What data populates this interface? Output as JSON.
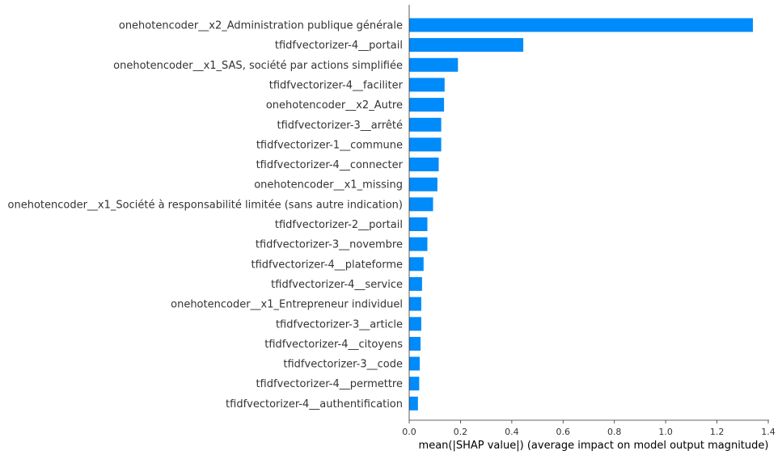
{
  "chart_data": {
    "type": "bar",
    "orientation": "horizontal",
    "xlabel": "mean(|SHAP value|) (average impact on model output magnitude)",
    "ylabel": "",
    "xlim": [
      0,
      1.4
    ],
    "xticks": [
      "0.0",
      "0.2",
      "0.4",
      "0.6",
      "0.8",
      "1.0",
      "1.2",
      "1.4"
    ],
    "grid": false,
    "legend": "none",
    "bar_color": "#008bfb",
    "categories": [
      "onehotencoder__x2_Administration publique générale",
      "tfidfvectorizer-4__portail",
      "onehotencoder__x1_SAS, société par actions simplifiée",
      "tfidfvectorizer-4__faciliter",
      "onehotencoder__x2_Autre",
      "tfidfvectorizer-3__arrêté",
      "tfidfvectorizer-1__commune",
      "tfidfvectorizer-4__connecter",
      "onehotencoder__x1_missing",
      "onehotencoder__x1_Société à responsabilité limitée (sans autre indication)",
      "tfidfvectorizer-2__portail",
      "tfidfvectorizer-3__novembre",
      "tfidfvectorizer-4__plateforme",
      "tfidfvectorizer-4__service",
      "onehotencoder__x1_Entrepreneur individuel",
      "tfidfvectorizer-3__article",
      "tfidfvectorizer-4__citoyens",
      "tfidfvectorizer-3__code",
      "tfidfvectorizer-4__permettre",
      "tfidfvectorizer-4__authentification"
    ],
    "values": [
      1.34,
      0.445,
      0.19,
      0.138,
      0.136,
      0.125,
      0.125,
      0.115,
      0.11,
      0.093,
      0.071,
      0.071,
      0.056,
      0.05,
      0.047,
      0.047,
      0.044,
      0.041,
      0.039,
      0.034
    ]
  }
}
